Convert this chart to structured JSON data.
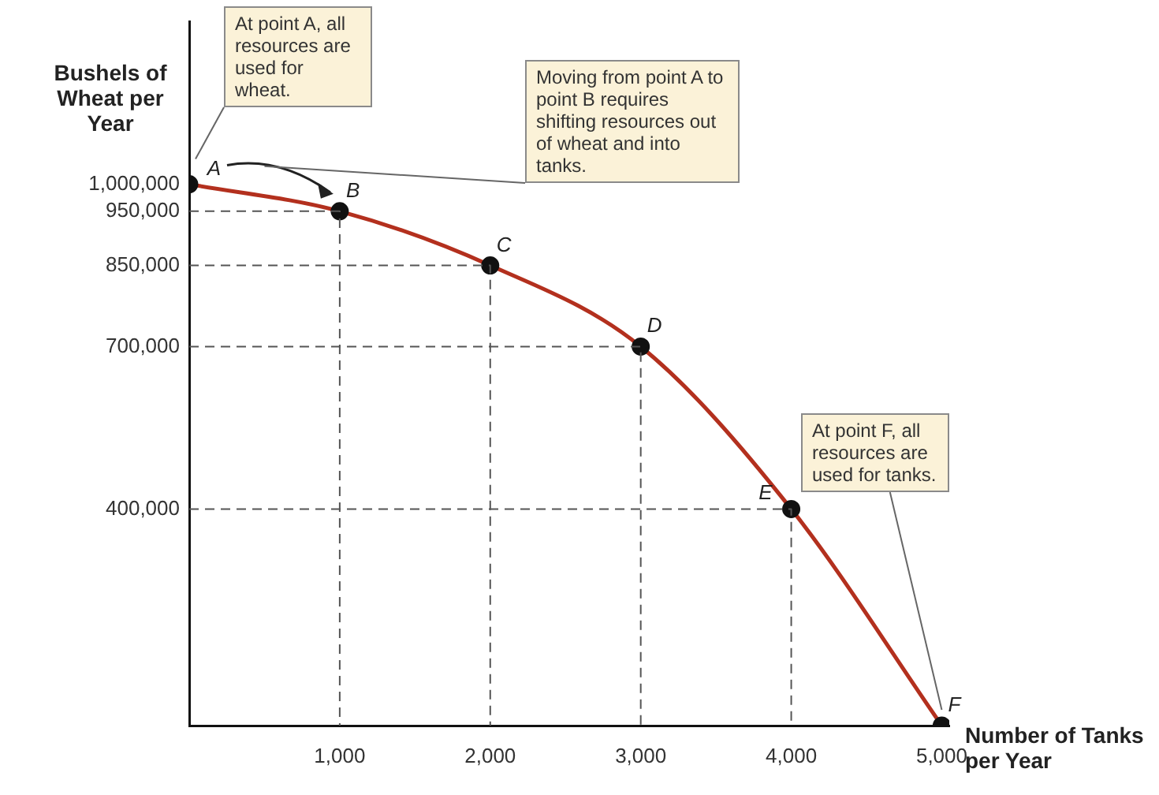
{
  "chart_data": {
    "type": "line",
    "xlabel": "Number of Tanks per Year",
    "ylabel": "Bushels of Wheat per Year",
    "series": [
      {
        "color": "#b3301e",
        "x": [
          0,
          1000,
          2000,
          3000,
          4000,
          5000
        ],
        "values": [
          1000000,
          950000,
          850000,
          700000,
          400000,
          0
        ]
      },
      {
        "type": "line",
        "color": "#555555",
        "line_style": "dashed",
        "marker": "none",
        "x": [
          0,
          1000,
          1000
        ],
        "values": [
          950000,
          950000,
          0
        ]
      },
      {
        "type": "line",
        "color": "#555555",
        "line_style": "dashed",
        "marker": "none",
        "x": [
          0,
          2000,
          2000
        ],
        "values": [
          850000,
          850000,
          0
        ]
      },
      {
        "type": "line",
        "color": "#555555",
        "line_style": "dashed",
        "marker": "none",
        "x": [
          0,
          3000,
          3000
        ],
        "values": [
          700000,
          700000,
          0
        ]
      },
      {
        "type": "line",
        "color": "#555555",
        "line_style": "dashed",
        "marker": "none",
        "x": [
          0,
          4000,
          4000
        ],
        "values": [
          400000,
          400000,
          0
        ]
      }
    ],
    "xlim": [
      0,
      5050
    ],
    "ylim": [
      0,
      1300000
    ],
    "xticks": [
      {
        "value": 1000,
        "label": "1,000"
      },
      {
        "value": 2000,
        "label": "2,000"
      },
      {
        "value": 3000,
        "label": "3,000"
      },
      {
        "value": 4000,
        "label": "4,000"
      },
      {
        "value": 5000,
        "label": "5,000"
      }
    ],
    "yticks": [
      {
        "value": 400000,
        "label": "400,000"
      },
      {
        "value": 700000,
        "label": "700,000"
      },
      {
        "value": 850000,
        "label": "850,000"
      },
      {
        "value": 950000,
        "label": "950,000"
      },
      {
        "value": 1000000,
        "label": "1,000,000"
      }
    ],
    "annotations": [
      {
        "text": "A",
        "x": 0,
        "y": 1000000
      },
      {
        "text": "B",
        "x": 1000,
        "y": 950000
      },
      {
        "text": "C",
        "x": 2000,
        "y": 850000
      },
      {
        "text": "D",
        "x": 3000,
        "y": 700000
      },
      {
        "text": "E",
        "x": 4000,
        "y": 400000
      },
      {
        "text": "F",
        "x": 5000,
        "y": 0
      },
      "At point A, all resources are used for wheat.",
      "Moving from point A to point B requires shifting resources out of wheat and into tanks.",
      "At point F, all resources are used for tanks."
    ],
    "grid": false,
    "legend": false,
    "marker": "circle",
    "line_style": "solid"
  }
}
